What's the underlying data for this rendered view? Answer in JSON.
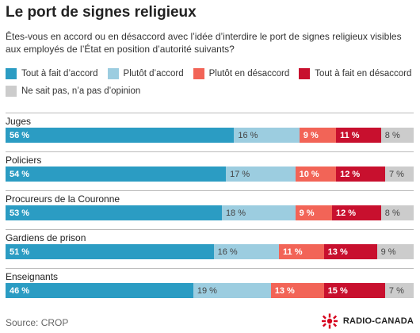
{
  "title": "Le port de signes religieux",
  "subtitle": "Êtes-vous en accord ou en désaccord avec l’idée d’interdire le port de signes religieux visibles aux employés de l’État en position d’autorité suivants?",
  "legend": [
    {
      "label": "Tout à fait d’accord",
      "color": "#2b9cc3"
    },
    {
      "label": "Plutôt d’accord",
      "color": "#9ccde0"
    },
    {
      "label": "Plutôt en désaccord",
      "color": "#f26457"
    },
    {
      "label": "Tout à fait en désaccord",
      "color": "#c8102e"
    },
    {
      "label": "Ne sait pas, n’a pas d’opinion",
      "color": "#cccccc"
    }
  ],
  "source": "Source: CROP",
  "brand": "RADIO-CANADA",
  "chart_data": {
    "type": "bar",
    "stacked": true,
    "orientation": "horizontal",
    "title": "Le port de signes religieux",
    "categories": [
      "Juges",
      "Policiers",
      "Procureurs de la Couronne",
      "Gardiens de prison",
      "Enseignants"
    ],
    "series": [
      {
        "name": "Tout à fait d’accord",
        "values": [
          56,
          54,
          53,
          51,
          46
        ],
        "labels": [
          "56 %",
          "54 %",
          "53 %",
          "51 %",
          "46 %"
        ]
      },
      {
        "name": "Plutôt d’accord",
        "values": [
          16,
          17,
          18,
          16,
          19
        ],
        "labels": [
          "16 %",
          "17 %",
          "18 %",
          "16 %",
          "19 %"
        ]
      },
      {
        "name": "Plutôt en désaccord",
        "values": [
          9,
          10,
          9,
          11,
          13
        ],
        "labels": [
          "9 %",
          "10 %",
          "9 %",
          "11 %",
          "13 %"
        ]
      },
      {
        "name": "Tout à fait en désaccord",
        "values": [
          11,
          12,
          12,
          13,
          15
        ],
        "labels": [
          "11 %",
          "12 %",
          "12 %",
          "13 %",
          "15 %"
        ]
      },
      {
        "name": "Ne sait pas, n’a pas d’opinion",
        "values": [
          8,
          7,
          8,
          9,
          7
        ],
        "labels": [
          "8 %",
          "7 %",
          "8 %",
          "9 %",
          "7 %"
        ]
      }
    ],
    "xlim": [
      0,
      100
    ],
    "grid": false,
    "legend_position": "top"
  }
}
